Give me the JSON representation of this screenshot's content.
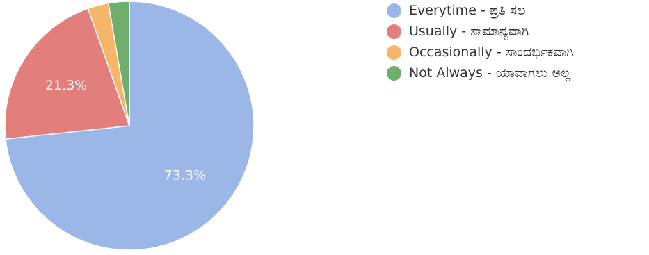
{
  "chart_data": {
    "type": "pie",
    "title": "",
    "slices": [
      {
        "label": "Everytime - ಪ್ರತಿ ಸಲ",
        "value": 73.3,
        "color": "#9ab7e8",
        "data_label": "73.3%"
      },
      {
        "label": "Usually - ಸಾಮಾನ್ಯವಾಗಿ",
        "value": 21.3,
        "color": "#e27e7c",
        "data_label": "21.3%"
      },
      {
        "label": "Occasionally - ಸಾಂದರ್ಭಿಕವಾಗಿ",
        "value": 2.7,
        "color": "#f6b66a",
        "data_label": ""
      },
      {
        "label": "Not Always - ಯಾವಾಗಲು ಅಲ್ಲ",
        "value": 2.7,
        "color": "#6fae6f",
        "data_label": ""
      }
    ],
    "legend": {
      "position": "right"
    },
    "start_angle_deg": 90,
    "direction": "clockwise",
    "data_label_color": "#ffffff"
  }
}
